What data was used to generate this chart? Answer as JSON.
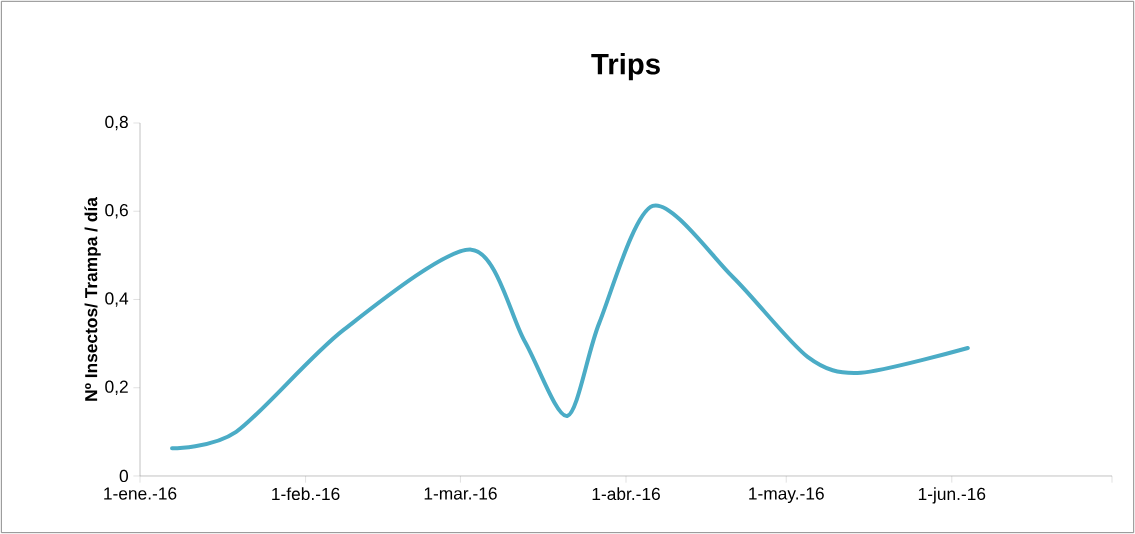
{
  "chart_data": {
    "type": "line",
    "title": "Trips",
    "ylabel": "Nº Insectos/ Trampa / día",
    "x": [
      "2016-01-07",
      "2016-01-19",
      "2016-02-08",
      "2016-03-03",
      "2016-03-13",
      "2016-03-21",
      "2016-03-27",
      "2016-04-06",
      "2016-04-21",
      "2016-05-05",
      "2016-05-15",
      "2016-06-04"
    ],
    "series": [
      {
        "color": "#4bacc6",
        "values": [
          0.063,
          0.1,
          0.33,
          0.513,
          0.306,
          0.136,
          0.347,
          0.612,
          0.451,
          0.27,
          0.234,
          0.29
        ]
      }
    ],
    "xlim": [
      "2016-01-01",
      "2016-07-01"
    ],
    "xticks": [
      {
        "value": "2016-01-01",
        "label": "1-ene.-16"
      },
      {
        "value": "2016-02-01",
        "label": "1-feb.-16"
      },
      {
        "value": "2016-03-01",
        "label": "1-mar.-16"
      },
      {
        "value": "2016-04-01",
        "label": "1-abr.-16"
      },
      {
        "value": "2016-05-01",
        "label": "1-may.-16"
      },
      {
        "value": "2016-06-01",
        "label": "1-jun.-16"
      },
      {
        "value": "2016-07-01",
        "label": null
      }
    ],
    "ylim": [
      0,
      0.8
    ],
    "yticks": [
      0,
      {
        "value": 0.2,
        "label": "0,2"
      },
      {
        "value": 0.4,
        "label": "0,4"
      },
      {
        "value": 0.6,
        "label": "0,6"
      },
      {
        "value": 0.8,
        "label": "0,8"
      }
    ],
    "grid": false
  }
}
